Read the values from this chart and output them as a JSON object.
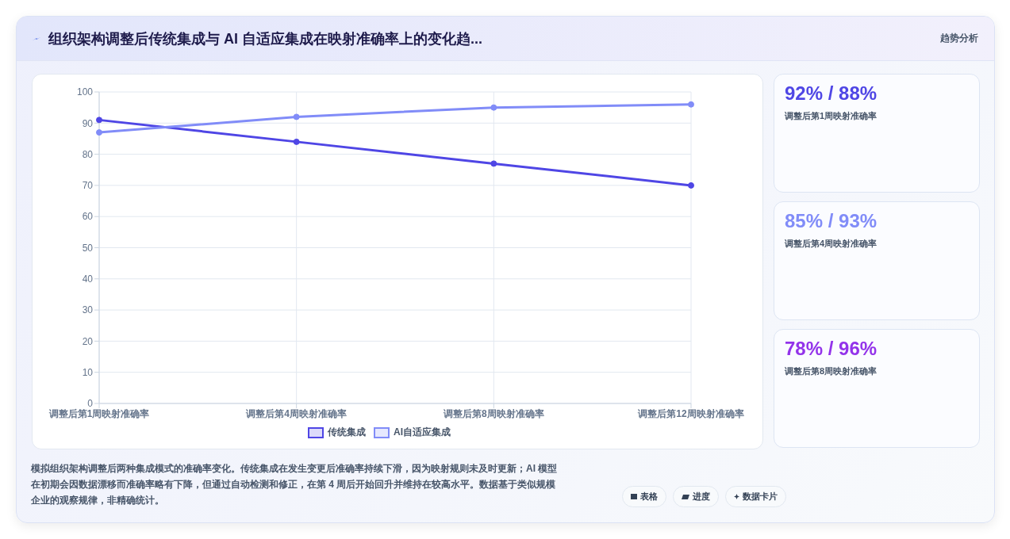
{
  "chart_data": {
    "type": "line",
    "title": "组织架构调整后传统集成与 AI 自适应集成在映射准确率上的变化趋...",
    "categories": [
      "调整后第1周映射准确率",
      "调整后第4周映射准确率",
      "调整后第8周映射准确率",
      "调整后第12周映射准确率"
    ],
    "series": [
      {
        "name": "传统集成",
        "color": "#4f46e5",
        "values": [
          91,
          84,
          77,
          70
        ]
      },
      {
        "name": "AI自适应集成",
        "color": "#818cf8",
        "values": [
          87,
          92,
          95,
          96
        ]
      }
    ],
    "ylim": [
      0,
      100
    ],
    "yticks": [
      0,
      10,
      20,
      30,
      40,
      50,
      60,
      70,
      80,
      90,
      100
    ],
    "grid": true,
    "legend": "bottom",
    "marker": "circle",
    "line_style": "solid",
    "annotations": [
      "趋势分析",
      "92% / 88%",
      "调整后第1周映射准确率",
      "85% / 93%",
      "调整后第4周映射准确率",
      "78% / 96%",
      "调整后第8周映射准确率",
      "模拟组织架构调整后两种集成模式的准确率变化。传统集成在发生变更后准确率持续下滑，因为映射规则未及时更新；AI 模型在初期会因数据漂移而准确率略有下降，但通过自动检测和修正，在第 4 周后开始回升并维持在较高水平。数据基于类似规模企业的观察规律，非精确统计。",
      "表格",
      "进度",
      "数据卡片"
    ]
  }
}
